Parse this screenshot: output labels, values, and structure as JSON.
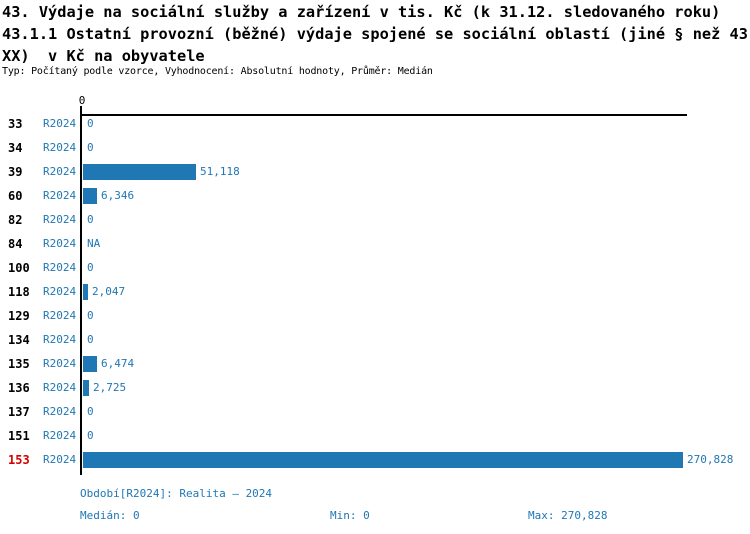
{
  "header": {
    "title_line1": "43. Výdaje na sociální služby a zařízení v tis. Kč (k 31.12. sledovaného roku)",
    "title_line2": "43.1.1 Ostatní provozní (běžné) výdaje spojené se sociální oblastí (jiné § než 43",
    "title_line3": "XX)  v Kč na obyvatele",
    "subtitle": "Typ: Počítaný podle vzorce, Vyhodnocení: Absolutní hodnoty, Průměr: Medián"
  },
  "chart_data": {
    "type": "bar",
    "orientation": "horizontal",
    "axis_tick_label": "0",
    "series_label": "R2024",
    "categories": [
      "33",
      "34",
      "39",
      "60",
      "82",
      "84",
      "100",
      "118",
      "129",
      "134",
      "135",
      "136",
      "137",
      "151",
      "153"
    ],
    "values": [
      0,
      0,
      51118,
      6346,
      0,
      null,
      0,
      2047,
      0,
      0,
      6474,
      2725,
      0,
      0,
      270828
    ],
    "value_labels": [
      "0",
      "0",
      "51,118",
      "6,346",
      "0",
      "NA",
      "0",
      "2,047",
      "0",
      "0",
      "6,474",
      "2,725",
      "0",
      "0",
      "270,828"
    ],
    "highlighted_category": "153",
    "xlim": [
      0,
      270828
    ],
    "grid": false,
    "bar_color": "#1f77b4",
    "highlight_color": "#d60000",
    "axis_color": "#000000"
  },
  "footer": {
    "period_label": "Období[R2024]: Realita – 2024",
    "median_label": "Medián: 0",
    "min_label": "Min: 0",
    "max_label": "Max: 270,828"
  }
}
